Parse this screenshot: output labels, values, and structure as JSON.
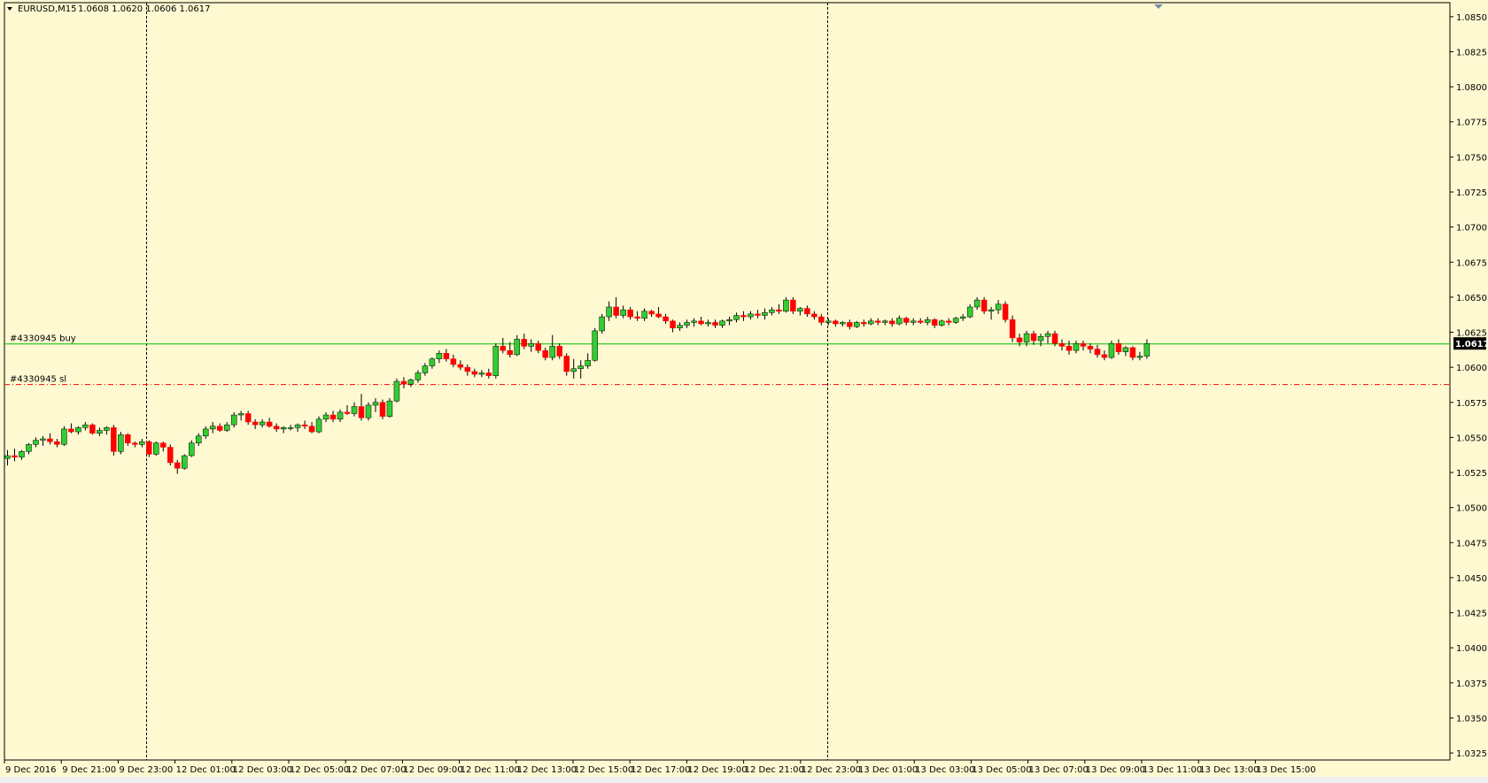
{
  "header": {
    "dropdown_icon": "triangle-down-icon",
    "symbol": "EURUSD,M15",
    "ohlc": "1.0608 1.0620 1.0606 1.0617"
  },
  "orders": {
    "buy_label": "#4330945 buy",
    "sl_label": "#4330945 sl",
    "buy_price": 1.0617,
    "sl_price": 1.0588,
    "buy_color": "#00C000",
    "sl_color": "#FF0000"
  },
  "price_tag": "1.0617",
  "scroll_marker_icon": "triangle-down-marker-icon",
  "colors": {
    "background": "#FFF9D2",
    "bull": "#32CD32",
    "bear": "#FF0000",
    "outline": "#000000"
  },
  "chart_data": {
    "type": "candlestick",
    "symbol": "EURUSD",
    "timeframe": "M15",
    "ylim": [
      1.032,
      1.086
    ],
    "y_ticks": [
      "1.0850",
      "1.0825",
      "1.0800",
      "1.0775",
      "1.0750",
      "1.0725",
      "1.0700",
      "1.0675",
      "1.0650",
      "1.0625",
      "1.0600",
      "1.0575",
      "1.0550",
      "1.0525",
      "1.0500",
      "1.0475",
      "1.0450",
      "1.0425",
      "1.0400",
      "1.0375",
      "1.0350",
      "1.0325"
    ],
    "x_labels": [
      "9 Dec 2016",
      "9 Dec 21:00",
      "9 Dec 23:00",
      "12 Dec 01:00",
      "12 Dec 03:00",
      "12 Dec 05:00",
      "12 Dec 07:00",
      "12 Dec 09:00",
      "12 Dec 11:00",
      "12 Dec 13:00",
      "12 Dec 15:00",
      "12 Dec 17:00",
      "12 Dec 19:00",
      "12 Dec 21:00",
      "12 Dec 23:00",
      "13 Dec 01:00",
      "13 Dec 03:00",
      "13 Dec 05:00",
      "13 Dec 07:00",
      "13 Dec 09:00",
      "13 Dec 11:00",
      "13 Dec 13:00",
      "13 Dec 15:00"
    ],
    "period_separators": [
      "9 Dec 23:00",
      "12 Dec 23:00"
    ],
    "candles": [
      [
        1.0535,
        1.0541,
        1.053,
        1.0537
      ],
      [
        1.0537,
        1.0542,
        1.0533,
        1.0536
      ],
      [
        1.0536,
        1.0541,
        1.0534,
        1.054
      ],
      [
        1.054,
        1.0546,
        1.0538,
        1.0545
      ],
      [
        1.0545,
        1.055,
        1.0543,
        1.0548
      ],
      [
        1.0548,
        1.0551,
        1.0544,
        1.0549
      ],
      [
        1.0549,
        1.0553,
        1.0545,
        1.0547
      ],
      [
        1.0547,
        1.0549,
        1.0543,
        1.0545
      ],
      [
        1.0545,
        1.0558,
        1.0544,
        1.0556
      ],
      [
        1.0556,
        1.056,
        1.0553,
        1.0554
      ],
      [
        1.0554,
        1.0558,
        1.0552,
        1.0557
      ],
      [
        1.0557,
        1.0561,
        1.0555,
        1.0559
      ],
      [
        1.0559,
        1.056,
        1.0552,
        1.0553
      ],
      [
        1.0553,
        1.0557,
        1.0551,
        1.0555
      ],
      [
        1.0555,
        1.0558,
        1.0552,
        1.0557
      ],
      [
        1.0557,
        1.0559,
        1.0537,
        1.054
      ],
      [
        1.054,
        1.0554,
        1.0538,
        1.0552
      ],
      [
        1.0552,
        1.0553,
        1.0544,
        1.0546
      ],
      [
        1.0546,
        1.0547,
        1.0543,
        1.0545
      ],
      [
        1.0545,
        1.0549,
        1.0543,
        1.0547
      ],
      [
        1.0547,
        1.0548,
        1.0536,
        1.0538
      ],
      [
        1.0538,
        1.0547,
        1.0537,
        1.0546
      ],
      [
        1.0546,
        1.0547,
        1.054,
        1.0543
      ],
      [
        1.0543,
        1.0545,
        1.053,
        1.0532
      ],
      [
        1.0532,
        1.0534,
        1.0524,
        1.0528
      ],
      [
        1.0528,
        1.0538,
        1.0527,
        1.0537
      ],
      [
        1.0537,
        1.0548,
        1.0536,
        1.0546
      ],
      [
        1.0546,
        1.0553,
        1.0544,
        1.0551
      ],
      [
        1.0551,
        1.0558,
        1.0549,
        1.0556
      ],
      [
        1.0556,
        1.0561,
        1.0553,
        1.0558
      ],
      [
        1.0558,
        1.056,
        1.0554,
        1.0555
      ],
      [
        1.0555,
        1.0561,
        1.0554,
        1.0559
      ],
      [
        1.0559,
        1.0568,
        1.0557,
        1.0566
      ],
      [
        1.0566,
        1.0569,
        1.0562,
        1.0567
      ],
      [
        1.0567,
        1.0569,
        1.0559,
        1.0561
      ],
      [
        1.0561,
        1.0563,
        1.0556,
        1.0559
      ],
      [
        1.0559,
        1.0563,
        1.0557,
        1.0561
      ],
      [
        1.0561,
        1.0564,
        1.0557,
        1.0558
      ],
      [
        1.0558,
        1.056,
        1.0554,
        1.0556
      ],
      [
        1.0556,
        1.0558,
        1.0553,
        1.0557
      ],
      [
        1.0557,
        1.0559,
        1.0555,
        1.0557
      ],
      [
        1.0557,
        1.056,
        1.0554,
        1.0559
      ],
      [
        1.0559,
        1.0562,
        1.0556,
        1.0558
      ],
      [
        1.0558,
        1.0561,
        1.0553,
        1.0554
      ],
      [
        1.0554,
        1.0565,
        1.0553,
        1.0563
      ],
      [
        1.0563,
        1.0568,
        1.0561,
        1.0566
      ],
      [
        1.0566,
        1.0569,
        1.0561,
        1.0563
      ],
      [
        1.0563,
        1.057,
        1.0561,
        1.0568
      ],
      [
        1.0568,
        1.0573,
        1.0566,
        1.0567
      ],
      [
        1.0567,
        1.0575,
        1.0565,
        1.0572
      ],
      [
        1.0572,
        1.0581,
        1.0562,
        1.0564
      ],
      [
        1.0564,
        1.0575,
        1.0562,
        1.0573
      ],
      [
        1.0573,
        1.0578,
        1.0568,
        1.0575
      ],
      [
        1.0575,
        1.0577,
        1.0563,
        1.0565
      ],
      [
        1.0565,
        1.0578,
        1.0564,
        1.0576
      ],
      [
        1.0576,
        1.0592,
        1.0575,
        1.059
      ],
      [
        1.059,
        1.0593,
        1.0585,
        1.0588
      ],
      [
        1.0588,
        1.0592,
        1.0586,
        1.0591
      ],
      [
        1.0591,
        1.0598,
        1.0589,
        1.0596
      ],
      [
        1.0596,
        1.0603,
        1.0594,
        1.0601
      ],
      [
        1.0601,
        1.0607,
        1.0599,
        1.0606
      ],
      [
        1.0606,
        1.0612,
        1.0603,
        1.061
      ],
      [
        1.061,
        1.0613,
        1.0604,
        1.0606
      ],
      [
        1.0606,
        1.0609,
        1.06,
        1.0602
      ],
      [
        1.0602,
        1.0605,
        1.0598,
        1.06
      ],
      [
        1.06,
        1.0602,
        1.0594,
        1.0597
      ],
      [
        1.0597,
        1.0599,
        1.0593,
        1.0595
      ],
      [
        1.0595,
        1.0598,
        1.0593,
        1.0596
      ],
      [
        1.0596,
        1.0599,
        1.0592,
        1.0594
      ],
      [
        1.0594,
        1.0617,
        1.0592,
        1.0615
      ],
      [
        1.0615,
        1.0621,
        1.061,
        1.0612
      ],
      [
        1.0612,
        1.0618,
        1.0607,
        1.0609
      ],
      [
        1.0609,
        1.0623,
        1.0608,
        1.062
      ],
      [
        1.062,
        1.0624,
        1.0613,
        1.0615
      ],
      [
        1.0615,
        1.062,
        1.0611,
        1.0617
      ],
      [
        1.0617,
        1.0619,
        1.061,
        1.0612
      ],
      [
        1.0612,
        1.0614,
        1.0605,
        1.0607
      ],
      [
        1.0607,
        1.0623,
        1.0605,
        1.0615
      ],
      [
        1.0615,
        1.0617,
        1.0606,
        1.0608
      ],
      [
        1.0608,
        1.061,
        1.0594,
        1.0597
      ],
      [
        1.0597,
        1.0606,
        1.0592,
        1.0599
      ],
      [
        1.0599,
        1.0605,
        1.0592,
        1.0601
      ],
      [
        1.0601,
        1.061,
        1.0599,
        1.0605
      ],
      [
        1.0605,
        1.0628,
        1.0604,
        1.0626
      ],
      [
        1.0626,
        1.0638,
        1.0624,
        1.0636
      ],
      [
        1.0636,
        1.0647,
        1.0633,
        1.0643
      ],
      [
        1.0643,
        1.065,
        1.0635,
        1.0637
      ],
      [
        1.0637,
        1.0644,
        1.0635,
        1.0641
      ],
      [
        1.0641,
        1.0643,
        1.0634,
        1.0636
      ],
      [
        1.0636,
        1.064,
        1.0633,
        1.0635
      ],
      [
        1.0635,
        1.0642,
        1.0633,
        1.064
      ],
      [
        1.064,
        1.0641,
        1.0636,
        1.0638
      ],
      [
        1.0638,
        1.0643,
        1.0635,
        1.0636
      ],
      [
        1.0636,
        1.0638,
        1.0631,
        1.0633
      ],
      [
        1.0633,
        1.0634,
        1.0625,
        1.0628
      ],
      [
        1.0628,
        1.0632,
        1.0626,
        1.063
      ],
      [
        1.063,
        1.0634,
        1.0628,
        1.0632
      ],
      [
        1.0632,
        1.0635,
        1.0629,
        1.0633
      ],
      [
        1.0633,
        1.0636,
        1.063,
        1.0631
      ],
      [
        1.0631,
        1.0634,
        1.0629,
        1.0632
      ],
      [
        1.0632,
        1.0634,
        1.0628,
        1.063
      ],
      [
        1.063,
        1.0634,
        1.0628,
        1.0633
      ],
      [
        1.0633,
        1.0636,
        1.063,
        1.0634
      ],
      [
        1.0634,
        1.0639,
        1.0632,
        1.0637
      ],
      [
        1.0637,
        1.064,
        1.0633,
        1.0636
      ],
      [
        1.0636,
        1.064,
        1.0634,
        1.0638
      ],
      [
        1.0638,
        1.0641,
        1.0635,
        1.0637
      ],
      [
        1.0637,
        1.0642,
        1.0634,
        1.0639
      ],
      [
        1.0639,
        1.0643,
        1.0637,
        1.0641
      ],
      [
        1.0641,
        1.0645,
        1.0638,
        1.064
      ],
      [
        1.064,
        1.065,
        1.0639,
        1.0648
      ],
      [
        1.0648,
        1.065,
        1.0638,
        1.064
      ],
      [
        1.064,
        1.0643,
        1.0637,
        1.0642
      ],
      [
        1.0642,
        1.0644,
        1.0636,
        1.0638
      ],
      [
        1.0638,
        1.064,
        1.0634,
        1.0636
      ],
      [
        1.0636,
        1.0638,
        1.063,
        1.0632
      ],
      [
        1.0632,
        1.0635,
        1.063,
        1.0633
      ],
      [
        1.0633,
        1.0634,
        1.0629,
        1.0631
      ],
      [
        1.0631,
        1.0633,
        1.0629,
        1.0632
      ],
      [
        1.0632,
        1.0634,
        1.0627,
        1.0629
      ],
      [
        1.0629,
        1.0633,
        1.0628,
        1.0632
      ],
      [
        1.0632,
        1.0634,
        1.0629,
        1.0631
      ],
      [
        1.0631,
        1.0635,
        1.063,
        1.0633
      ],
      [
        1.0633,
        1.0635,
        1.063,
        1.0632
      ],
      [
        1.0632,
        1.0634,
        1.063,
        1.0633
      ],
      [
        1.0633,
        1.0635,
        1.0629,
        1.0631
      ],
      [
        1.0631,
        1.0637,
        1.063,
        1.0635
      ],
      [
        1.0635,
        1.0636,
        1.063,
        1.0632
      ],
      [
        1.0632,
        1.0635,
        1.063,
        1.0633
      ],
      [
        1.0633,
        1.0635,
        1.0631,
        1.0632
      ],
      [
        1.0632,
        1.0636,
        1.063,
        1.0634
      ],
      [
        1.0634,
        1.0635,
        1.0628,
        1.063
      ],
      [
        1.063,
        1.0634,
        1.0629,
        1.0633
      ],
      [
        1.0633,
        1.0635,
        1.063,
        1.0632
      ],
      [
        1.0632,
        1.0636,
        1.0631,
        1.0635
      ],
      [
        1.0635,
        1.0638,
        1.0633,
        1.0636
      ],
      [
        1.0636,
        1.0645,
        1.0635,
        1.0643
      ],
      [
        1.0643,
        1.065,
        1.0641,
        1.0648
      ],
      [
        1.0648,
        1.065,
        1.0638,
        1.064
      ],
      [
        1.064,
        1.0643,
        1.0634,
        1.0641
      ],
      [
        1.0641,
        1.0648,
        1.0638,
        1.0645
      ],
      [
        1.0645,
        1.0647,
        1.0632,
        1.0634
      ],
      [
        1.0634,
        1.0637,
        1.0618,
        1.0621
      ],
      [
        1.0621,
        1.0624,
        1.0615,
        1.0618
      ],
      [
        1.0618,
        1.0626,
        1.0615,
        1.0624
      ],
      [
        1.0624,
        1.0626,
        1.0616,
        1.0619
      ],
      [
        1.0619,
        1.0624,
        1.0615,
        1.0622
      ],
      [
        1.0622,
        1.0626,
        1.0617,
        1.0624
      ],
      [
        1.0624,
        1.0626,
        1.0615,
        1.0617
      ],
      [
        1.0617,
        1.062,
        1.0612,
        1.0615
      ],
      [
        1.0615,
        1.0619,
        1.0609,
        1.0612
      ],
      [
        1.0612,
        1.0619,
        1.061,
        1.0617
      ],
      [
        1.0617,
        1.0619,
        1.0612,
        1.0615
      ],
      [
        1.0615,
        1.0617,
        1.061,
        1.0613
      ],
      [
        1.0613,
        1.0616,
        1.0607,
        1.0609
      ],
      [
        1.0609,
        1.0612,
        1.0605,
        1.0607
      ],
      [
        1.0607,
        1.0619,
        1.0606,
        1.0617
      ],
      [
        1.0617,
        1.062,
        1.0609,
        1.0611
      ],
      [
        1.0611,
        1.0615,
        1.0608,
        1.0614
      ],
      [
        1.0614,
        1.0615,
        1.0605,
        1.0607
      ],
      [
        1.0607,
        1.0611,
        1.0605,
        1.0608
      ],
      [
        1.0608,
        1.062,
        1.0606,
        1.0617
      ]
    ]
  }
}
